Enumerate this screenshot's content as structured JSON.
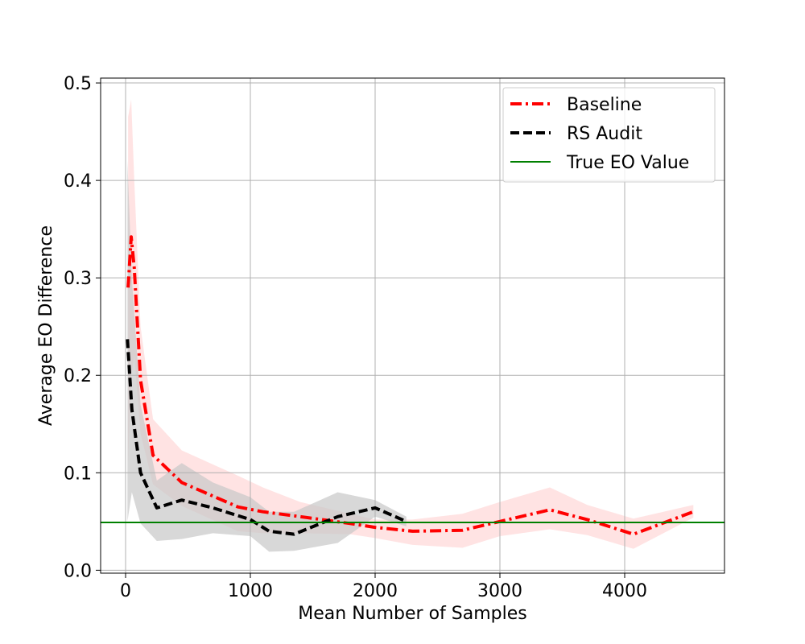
{
  "chart_data": {
    "type": "line",
    "title": "",
    "xlabel": "Mean Number of Samples",
    "ylabel": "Average EO Difference",
    "xlim": [
      -200,
      4800
    ],
    "ylim": [
      -0.003,
      0.505
    ],
    "xticks": [
      0,
      1000,
      2000,
      3000,
      4000
    ],
    "xtick_labels": [
      "0",
      "1000",
      "2000",
      "3000",
      "4000"
    ],
    "yticks": [
      0.0,
      0.1,
      0.2,
      0.3,
      0.4,
      0.5
    ],
    "ytick_labels": [
      "0.0",
      "0.1",
      "0.2",
      "0.3",
      "0.4",
      "0.5"
    ],
    "grid": true,
    "legend_position": "top-right",
    "series": [
      {
        "name": "Baseline",
        "style": "dashdot",
        "color": "#ff0000",
        "band_color": "#ffcccc",
        "x": [
          20,
          45,
          70,
          120,
          220,
          450,
          900,
          1100,
          1400,
          1800,
          2000,
          2300,
          2700,
          3000,
          3400,
          3700,
          4070,
          4550
        ],
        "y": [
          0.29,
          0.342,
          0.31,
          0.195,
          0.118,
          0.09,
          0.065,
          0.06,
          0.055,
          0.048,
          0.044,
          0.04,
          0.041,
          0.05,
          0.062,
          0.052,
          0.037,
          0.06
        ],
        "upper": [
          0.465,
          0.483,
          0.4,
          0.25,
          0.155,
          0.123,
          0.097,
          0.085,
          0.07,
          0.058,
          0.052,
          0.052,
          0.058,
          0.07,
          0.085,
          0.067,
          0.053,
          0.067
        ],
        "lower": [
          0.11,
          0.2,
          0.22,
          0.14,
          0.088,
          0.066,
          0.04,
          0.038,
          0.038,
          0.037,
          0.033,
          0.026,
          0.023,
          0.035,
          0.042,
          0.036,
          0.022,
          0.054
        ]
      },
      {
        "name": "RS Audit",
        "style": "dashed",
        "color": "#000000",
        "band_color": "#c8c8c8",
        "x": [
          15,
          50,
          120,
          250,
          450,
          700,
          1000,
          1150,
          1350,
          1700,
          2000,
          2250
        ],
        "y": [
          0.237,
          0.165,
          0.1,
          0.064,
          0.072,
          0.064,
          0.052,
          0.04,
          0.037,
          0.055,
          0.064,
          0.05
        ],
        "upper": [
          0.42,
          0.3,
          0.17,
          0.092,
          0.11,
          0.09,
          0.075,
          0.06,
          0.06,
          0.08,
          0.072,
          0.055
        ],
        "lower": [
          0.05,
          0.08,
          0.048,
          0.03,
          0.032,
          0.038,
          0.035,
          0.019,
          0.02,
          0.028,
          0.055,
          0.045
        ]
      },
      {
        "name": "True EO Value",
        "style": "solid",
        "color": "#008000",
        "hline": 0.049
      }
    ]
  }
}
